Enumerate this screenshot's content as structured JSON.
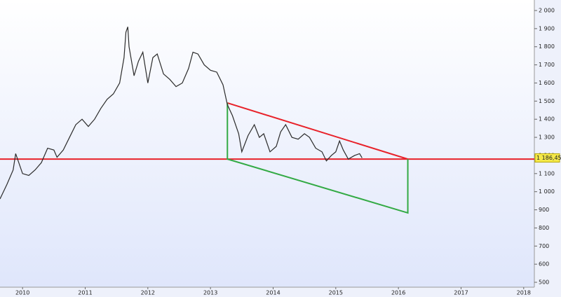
{
  "chart_data": {
    "type": "line",
    "x": [
      2009.64,
      2009.75,
      2009.85,
      2009.89,
      2010.0,
      2010.1,
      2010.2,
      2010.3,
      2010.4,
      2010.5,
      2010.55,
      2010.65,
      2010.75,
      2010.85,
      2010.95,
      2011.05,
      2011.15,
      2011.25,
      2011.35,
      2011.45,
      2011.55,
      2011.62,
      2011.65,
      2011.68,
      2011.7,
      2011.78,
      2011.85,
      2011.92,
      2012.0,
      2012.08,
      2012.15,
      2012.25,
      2012.35,
      2012.45,
      2012.55,
      2012.65,
      2012.72,
      2012.8,
      2012.9,
      2013.0,
      2013.1,
      2013.2,
      2013.27,
      2013.35,
      2013.45,
      2013.5,
      2013.6,
      2013.7,
      2013.78,
      2013.85,
      2013.95,
      2014.05,
      2014.12,
      2014.2,
      2014.3,
      2014.4,
      2014.5,
      2014.58,
      2014.68,
      2014.78,
      2014.85,
      2014.93,
      2015.0,
      2015.06,
      2015.12,
      2015.2,
      2015.3,
      2015.38,
      2015.42
    ],
    "series": [
      {
        "color": "#2b2b2b",
        "values": [
          960,
          1040,
          1120,
          1210,
          1100,
          1090,
          1120,
          1160,
          1240,
          1230,
          1190,
          1230,
          1300,
          1370,
          1400,
          1360,
          1400,
          1460,
          1510,
          1540,
          1600,
          1740,
          1880,
          1910,
          1800,
          1640,
          1720,
          1770,
          1600,
          1740,
          1760,
          1650,
          1620,
          1580,
          1600,
          1680,
          1770,
          1760,
          1700,
          1670,
          1660,
          1590,
          1480,
          1420,
          1320,
          1220,
          1310,
          1370,
          1300,
          1320,
          1220,
          1250,
          1330,
          1370,
          1300,
          1290,
          1320,
          1300,
          1240,
          1220,
          1170,
          1200,
          1220,
          1280,
          1230,
          1180,
          1200,
          1210,
          1186.45
        ]
      }
    ],
    "xlim": [
      2009.64,
      2018.17
    ],
    "xticks": [
      2010,
      2011,
      2012,
      2013,
      2014,
      2015,
      2016,
      2017,
      2018
    ],
    "ylim": [
      473,
      2058
    ],
    "yticks": [
      {
        "value": 2000,
        "label": "2 000"
      },
      {
        "value": 1900,
        "label": "1 900"
      },
      {
        "value": 1800,
        "label": "1 800"
      },
      {
        "value": 1700,
        "label": "1 700"
      },
      {
        "value": 1600,
        "label": "1 600"
      },
      {
        "value": 1500,
        "label": "1 500"
      },
      {
        "value": 1400,
        "label": "1 400"
      },
      {
        "value": 1300,
        "label": "1 300"
      },
      {
        "value": 1200,
        "label": "1 200"
      },
      {
        "value": 1100,
        "label": "1 100"
      },
      {
        "value": 1000,
        "label": "1 000"
      },
      900,
      800,
      700,
      600,
      500
    ],
    "last_price": {
      "value": 1186.45,
      "label": "1 186,45"
    },
    "trendlines": [
      {
        "color": "#e8222a",
        "x": [
          2009.64,
          2018.17
        ],
        "y": [
          1180,
          1180
        ]
      },
      {
        "color": "#e8222a",
        "x": [
          2013.27,
          2016.15
        ],
        "y": [
          1490,
          1180
        ]
      },
      {
        "color": "#33aa44",
        "x": [
          2013.27,
          2013.27,
          2016.15,
          2016.15
        ],
        "y": [
          1490,
          1180,
          883,
          1180
        ]
      }
    ]
  }
}
